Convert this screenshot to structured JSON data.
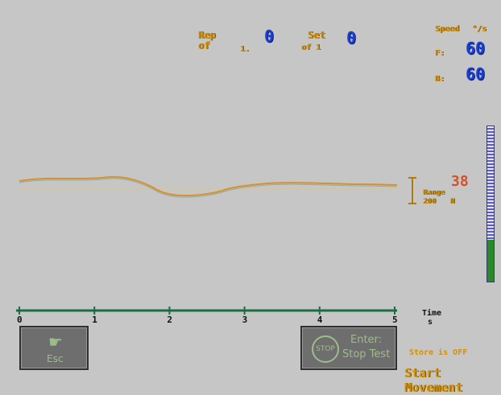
{
  "header": {
    "rep_label": "Rep",
    "rep_of_label": "of",
    "rep_of_value": "1.",
    "rep_value": "0",
    "set_label": "Set",
    "set_of_label": "of 1",
    "set_value": "0"
  },
  "speed": {
    "title": "Speed",
    "unit": "°/s",
    "f_label": "F:",
    "f_value": "60",
    "b_label": "B:",
    "b_value": "60"
  },
  "trace": {
    "current_value": "38",
    "scale_label": "Range",
    "scale_value": "200",
    "scale_unit": "N"
  },
  "timeline": {
    "axis_label": "Time",
    "axis_unit": "s",
    "ticks": [
      "0",
      "1",
      "2",
      "3",
      "4",
      "5"
    ]
  },
  "level_bar": {
    "fill_fraction": 0.27,
    "fill_color": "#2a8a2a",
    "track_color": "#ece8f4"
  },
  "buttons": {
    "esc_label": "Esc",
    "esc_icon": "hand-icon",
    "stop_enter_label": "Enter:",
    "stop_label": "Stop Test",
    "stop_icon_text": "STOP"
  },
  "status": {
    "store_text": "Store is OFF",
    "movement_text": "Start Movement"
  }
}
